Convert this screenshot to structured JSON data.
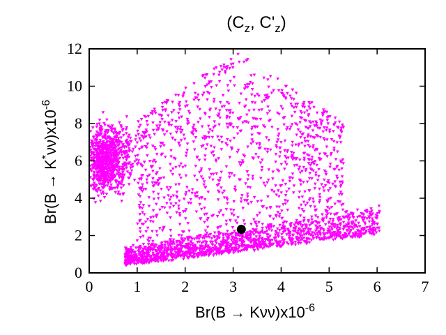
{
  "chart_data": {
    "type": "scatter",
    "title": {
      "base": "(C",
      "sub1": "z",
      "mid": ", C'",
      "sub2": "z",
      "end": ")"
    },
    "xlabel": {
      "base": "Br(B → Kνν)x10",
      "sup": "-6"
    },
    "ylabel": {
      "pre": "Br(B → K",
      "star": "*",
      "post": "νν)x10",
      "sup": "-6"
    },
    "xlim": [
      0,
      7
    ],
    "ylim": [
      0,
      12
    ],
    "xticks": [
      "0",
      "1",
      "2",
      "3",
      "4",
      "5",
      "6",
      "7"
    ],
    "yticks": [
      "0",
      "2",
      "4",
      "6",
      "8",
      "10",
      "12"
    ],
    "grid": false,
    "series": [
      {
        "marker": "down-triangle",
        "color": "#ff00ff",
        "point_count": 3400,
        "regions": [
          {
            "x_range": [
              0.0,
              1.2
            ],
            "y_range": [
              3.8,
              8.6
            ],
            "density": "dense"
          },
          {
            "x_range": [
              0.75,
              6.1
            ],
            "y_band_lower": [
              0.4,
              2.6
            ],
            "y_band_upper": [
              1.3,
              3.6
            ],
            "density": "dense"
          },
          {
            "x_range": [
              1.0,
              5.3
            ],
            "y_range": [
              2.0,
              11.8
            ],
            "density": "sparse"
          }
        ]
      }
    ],
    "sm_point": {
      "x": 3.17,
      "y": 2.33,
      "color": "#000000",
      "marker": "filled-circle"
    }
  }
}
